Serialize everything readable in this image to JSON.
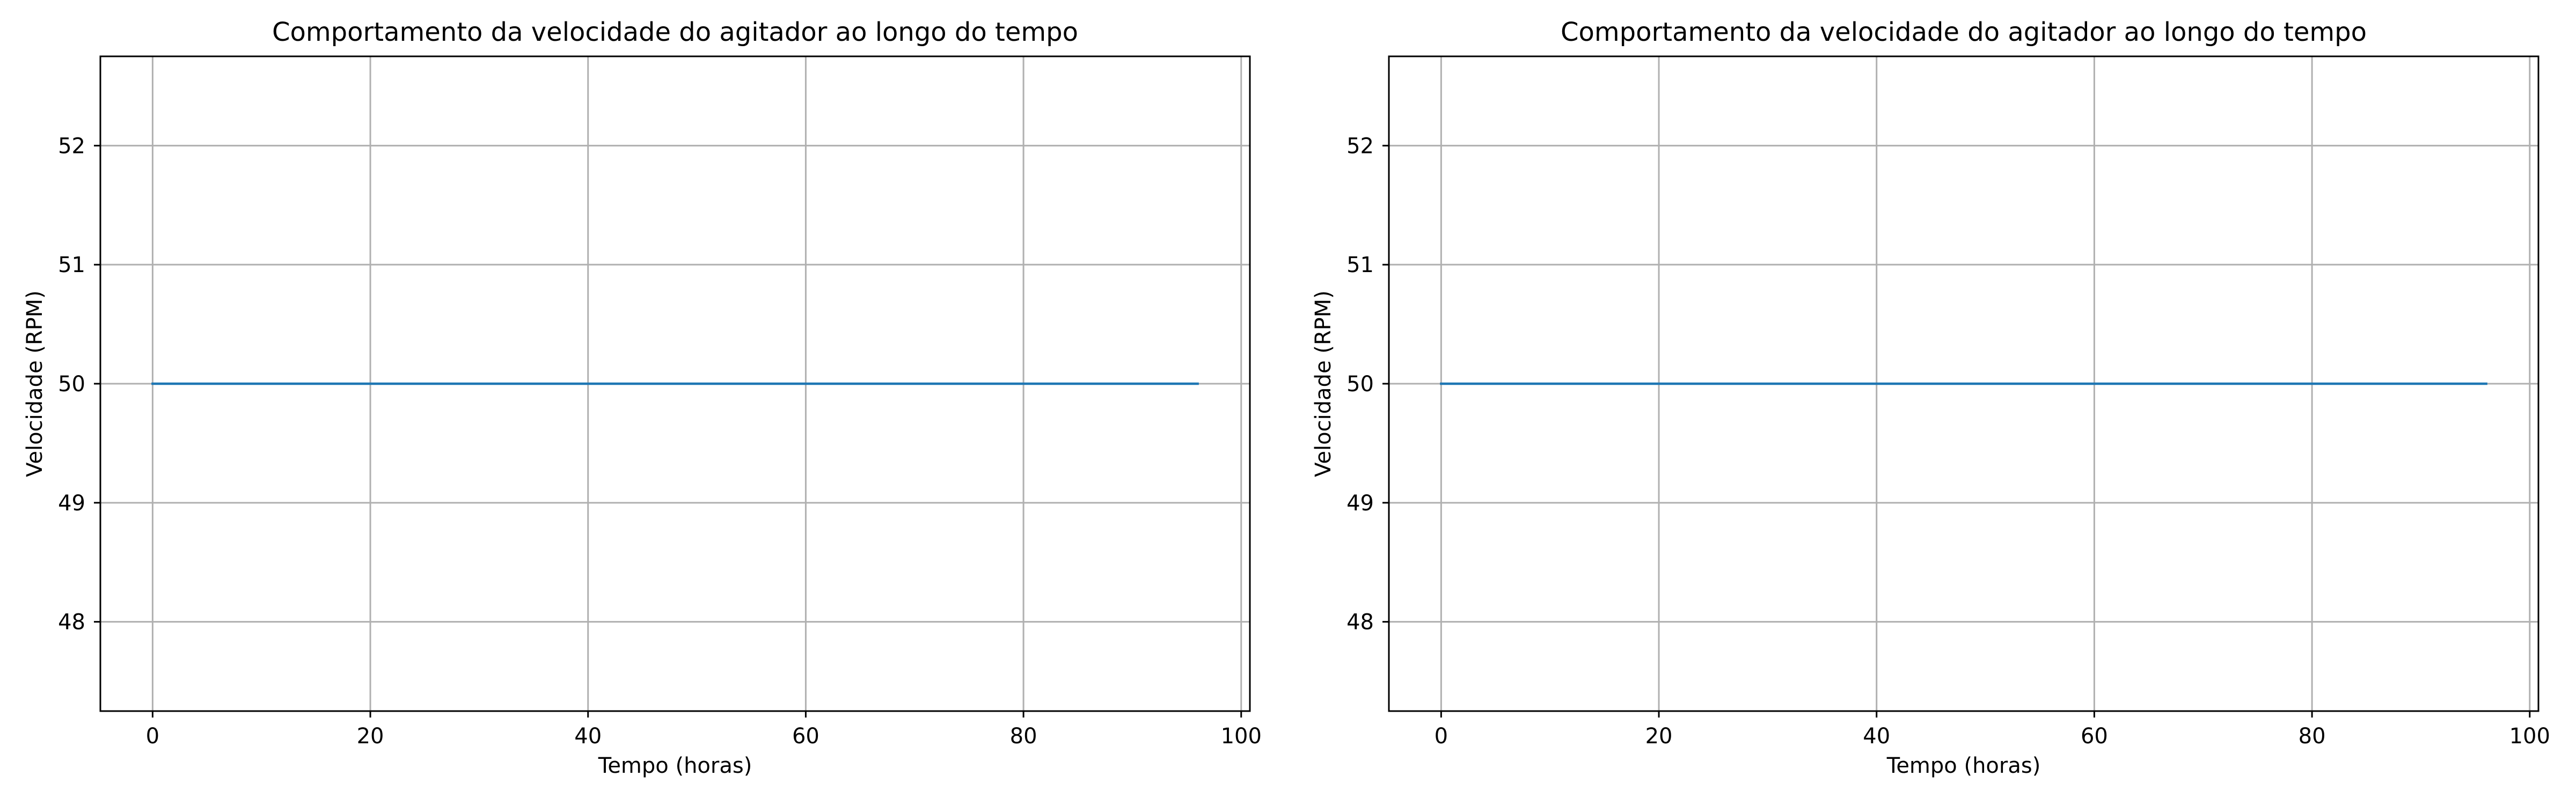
{
  "chart_data": [
    {
      "type": "line",
      "title": "Comportamento da velocidade do agitador ao longo do tempo",
      "xlabel": "Tempo (horas)",
      "ylabel": "Velocidade (RPM)",
      "xlim": [
        -4.8,
        100.8
      ],
      "ylim": [
        47.25,
        52.75
      ],
      "xticks": [
        0,
        20,
        40,
        60,
        80,
        100
      ],
      "yticks": [
        48,
        49,
        50,
        51,
        52
      ],
      "grid": true,
      "series": [
        {
          "x": [
            0,
            96
          ],
          "y": [
            50,
            50
          ],
          "color": "#1f77b4"
        }
      ]
    },
    {
      "type": "line",
      "title": "Comportamento da velocidade do agitador ao longo do tempo",
      "xlabel": "Tempo (horas)",
      "ylabel": "Velocidade (RPM)",
      "xlim": [
        -4.8,
        100.8
      ],
      "ylim": [
        47.25,
        52.75
      ],
      "xticks": [
        0,
        20,
        40,
        60,
        80,
        100
      ],
      "yticks": [
        48,
        49,
        50,
        51,
        52
      ],
      "grid": true,
      "series": [
        {
          "x": [
            0,
            96
          ],
          "y": [
            50,
            50
          ],
          "color": "#1f77b4"
        }
      ]
    }
  ]
}
